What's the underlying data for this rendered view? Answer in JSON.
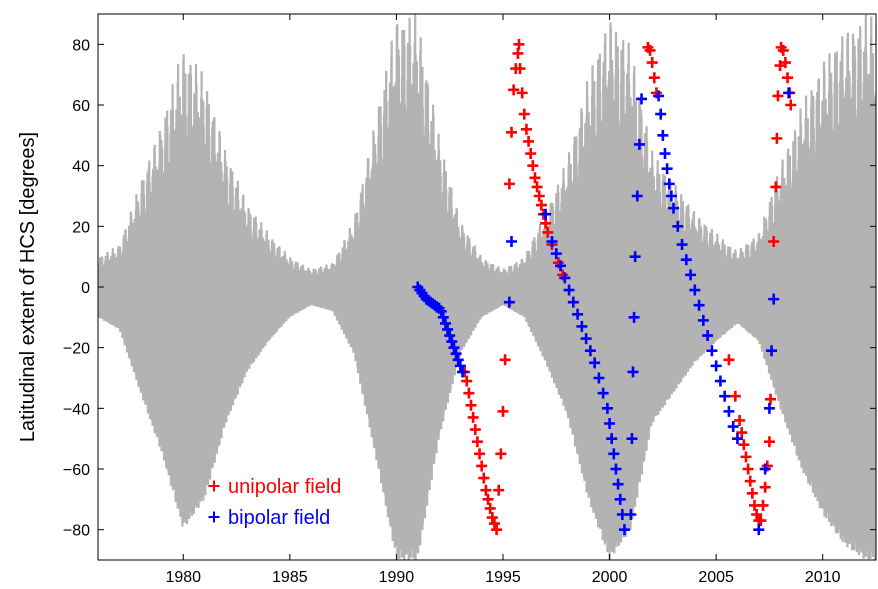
{
  "chart_data": {
    "type": "scatter",
    "title": "",
    "xlabel": "",
    "ylabel": "Latitudinal extent of HCS [degrees]",
    "xlim": [
      1976,
      2012.5
    ],
    "ylim": [
      -90,
      90
    ],
    "xticks": [
      1980,
      1985,
      1990,
      1995,
      2000,
      2005,
      2010
    ],
    "yticks": [
      -80,
      -60,
      -40,
      -20,
      0,
      20,
      40,
      60,
      80
    ],
    "grid": false,
    "legend_position": "bottom-left",
    "background_band": {
      "name": "",
      "color": "#b3b3b3",
      "envelope": [
        [
          1976,
          10
        ],
        [
          1977,
          14
        ],
        [
          1978,
          35
        ],
        [
          1979,
          55
        ],
        [
          1980,
          80
        ],
        [
          1981,
          70
        ],
        [
          1982,
          45
        ],
        [
          1983,
          28
        ],
        [
          1984,
          18
        ],
        [
          1985,
          10
        ],
        [
          1986,
          6
        ],
        [
          1987,
          8
        ],
        [
          1988,
          22
        ],
        [
          1989,
          55
        ],
        [
          1990,
          90
        ],
        [
          1991,
          90
        ],
        [
          1992,
          50
        ],
        [
          1993,
          22
        ],
        [
          1994,
          10
        ],
        [
          1995,
          6
        ],
        [
          1996,
          10
        ],
        [
          1997,
          25
        ],
        [
          1998,
          42
        ],
        [
          1999,
          70
        ],
        [
          2000,
          90
        ],
        [
          2001,
          80
        ],
        [
          2002,
          45
        ],
        [
          2003,
          35
        ],
        [
          2004,
          25
        ],
        [
          2005,
          18
        ],
        [
          2006,
          12
        ],
        [
          2007,
          18
        ],
        [
          2008,
          40
        ],
        [
          2009,
          60
        ],
        [
          2010,
          75
        ],
        [
          2011,
          85
        ],
        [
          2012,
          90
        ],
        [
          2012.5,
          90
        ]
      ]
    },
    "series": [
      {
        "name": "unipolar field",
        "color": "#ff0000",
        "points": [
          [
            1993.2,
            -28
          ],
          [
            1993.3,
            -31
          ],
          [
            1993.4,
            -35
          ],
          [
            1993.5,
            -39
          ],
          [
            1993.6,
            -43
          ],
          [
            1993.7,
            -47
          ],
          [
            1993.8,
            -51
          ],
          [
            1993.9,
            -55
          ],
          [
            1994.0,
            -59
          ],
          [
            1994.1,
            -63
          ],
          [
            1994.2,
            -67
          ],
          [
            1994.3,
            -70
          ],
          [
            1994.4,
            -73
          ],
          [
            1994.5,
            -76
          ],
          [
            1994.6,
            -78
          ],
          [
            1994.7,
            -80
          ],
          [
            1994.8,
            -67
          ],
          [
            1994.9,
            -55
          ],
          [
            1995.0,
            -41
          ],
          [
            1995.1,
            -24
          ],
          [
            1995.3,
            34
          ],
          [
            1995.4,
            51
          ],
          [
            1995.5,
            65
          ],
          [
            1995.6,
            72
          ],
          [
            1995.7,
            77
          ],
          [
            1995.75,
            80
          ],
          [
            1995.8,
            72
          ],
          [
            1995.9,
            64
          ],
          [
            1996.0,
            57
          ],
          [
            1996.1,
            52
          ],
          [
            1996.2,
            48
          ],
          [
            1996.3,
            44
          ],
          [
            1996.4,
            40
          ],
          [
            1996.5,
            36
          ],
          [
            1996.6,
            33
          ],
          [
            1996.7,
            30
          ],
          [
            1996.8,
            27
          ],
          [
            1996.9,
            24
          ],
          [
            1997.0,
            21
          ],
          [
            1997.1,
            18
          ],
          [
            1997.3,
            14
          ],
          [
            1997.6,
            8
          ],
          [
            1997.8,
            4
          ],
          [
            2001.8,
            79
          ],
          [
            2001.9,
            78
          ],
          [
            2002.0,
            74
          ],
          [
            2002.1,
            69
          ],
          [
            2002.2,
            64
          ],
          [
            2005.6,
            -24
          ],
          [
            2005.9,
            -36
          ],
          [
            2006.1,
            -44
          ],
          [
            2006.2,
            -48
          ],
          [
            2006.3,
            -52
          ],
          [
            2006.4,
            -56
          ],
          [
            2006.5,
            -60
          ],
          [
            2006.6,
            -64
          ],
          [
            2006.7,
            -68
          ],
          [
            2006.8,
            -72
          ],
          [
            2006.9,
            -75
          ],
          [
            2007.0,
            -77
          ],
          [
            2007.1,
            -77
          ],
          [
            2007.2,
            -72
          ],
          [
            2007.3,
            -66
          ],
          [
            2007.4,
            -59
          ],
          [
            2007.5,
            -51
          ],
          [
            2007.55,
            -37
          ],
          [
            2007.7,
            15
          ],
          [
            2007.8,
            33
          ],
          [
            2007.85,
            49
          ],
          [
            2007.9,
            63
          ],
          [
            2008.0,
            73
          ],
          [
            2008.05,
            79
          ],
          [
            2008.15,
            78
          ],
          [
            2008.25,
            74
          ],
          [
            2008.35,
            69
          ],
          [
            2008.45,
            64
          ],
          [
            2008.5,
            60
          ]
        ]
      },
      {
        "name": "bipolar field",
        "color": "#0000ff",
        "points": [
          [
            1991.0,
            0
          ],
          [
            1991.1,
            -1
          ],
          [
            1991.2,
            -2
          ],
          [
            1991.3,
            -3
          ],
          [
            1991.4,
            -4
          ],
          [
            1991.5,
            -4.5
          ],
          [
            1991.6,
            -5
          ],
          [
            1991.7,
            -5.5
          ],
          [
            1991.8,
            -6
          ],
          [
            1991.9,
            -6.5
          ],
          [
            1992.0,
            -7
          ],
          [
            1992.1,
            -8
          ],
          [
            1992.2,
            -10
          ],
          [
            1992.3,
            -12
          ],
          [
            1992.4,
            -14
          ],
          [
            1992.5,
            -16
          ],
          [
            1992.6,
            -18
          ],
          [
            1992.7,
            -20
          ],
          [
            1992.8,
            -22
          ],
          [
            1992.9,
            -24
          ],
          [
            1993.0,
            -26
          ],
          [
            1993.1,
            -28
          ],
          [
            1995.3,
            -5
          ],
          [
            1995.4,
            15
          ],
          [
            1997.0,
            24
          ],
          [
            1997.3,
            15
          ],
          [
            1997.5,
            11
          ],
          [
            1997.7,
            7
          ],
          [
            1997.9,
            3
          ],
          [
            1998.1,
            -1
          ],
          [
            1998.3,
            -5
          ],
          [
            1998.5,
            -9
          ],
          [
            1998.7,
            -13
          ],
          [
            1998.9,
            -17
          ],
          [
            1999.1,
            -21
          ],
          [
            1999.3,
            -25
          ],
          [
            1999.5,
            -30
          ],
          [
            1999.7,
            -35
          ],
          [
            1999.9,
            -40
          ],
          [
            2000.0,
            -45
          ],
          [
            2000.1,
            -50
          ],
          [
            2000.2,
            -55
          ],
          [
            2000.3,
            -60
          ],
          [
            2000.4,
            -65
          ],
          [
            2000.5,
            -70
          ],
          [
            2000.6,
            -75
          ],
          [
            2000.7,
            -80
          ],
          [
            2001.0,
            -75
          ],
          [
            2001.05,
            -50
          ],
          [
            2001.1,
            -28
          ],
          [
            2001.15,
            -10
          ],
          [
            2001.2,
            10
          ],
          [
            2001.3,
            30
          ],
          [
            2001.4,
            47
          ],
          [
            2001.5,
            62
          ],
          [
            2002.3,
            63
          ],
          [
            2002.4,
            57
          ],
          [
            2002.5,
            50
          ],
          [
            2002.6,
            44
          ],
          [
            2002.7,
            39
          ],
          [
            2002.8,
            34
          ],
          [
            2002.9,
            30
          ],
          [
            2003.0,
            26
          ],
          [
            2003.2,
            20
          ],
          [
            2003.4,
            14
          ],
          [
            2003.6,
            9
          ],
          [
            2003.8,
            4
          ],
          [
            2004.0,
            -1
          ],
          [
            2004.2,
            -6
          ],
          [
            2004.4,
            -11
          ],
          [
            2004.6,
            -16
          ],
          [
            2004.8,
            -21
          ],
          [
            2005.0,
            -26
          ],
          [
            2005.2,
            -31
          ],
          [
            2005.4,
            -36
          ],
          [
            2005.6,
            -41
          ],
          [
            2005.8,
            -46
          ],
          [
            2006.0,
            -50
          ],
          [
            2007.0,
            -80
          ],
          [
            2007.3,
            -60
          ],
          [
            2007.5,
            -40
          ],
          [
            2007.6,
            -21
          ],
          [
            2007.7,
            -4
          ],
          [
            2008.4,
            64
          ]
        ]
      }
    ]
  }
}
